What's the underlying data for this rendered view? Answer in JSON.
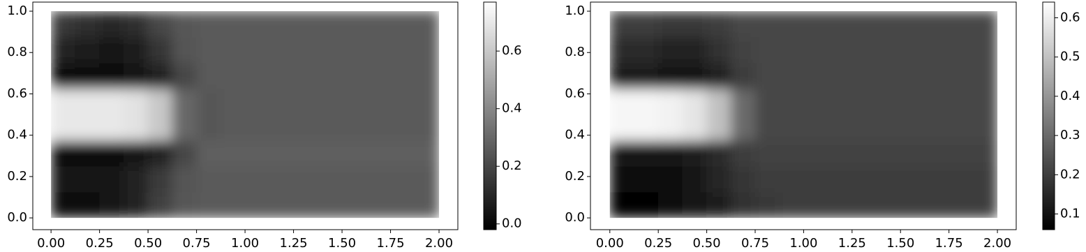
{
  "chart_data": [
    {
      "type": "heatmap",
      "x": [
        0.0625,
        0.1875,
        0.3125,
        0.4375,
        0.5625,
        0.6875,
        0.8125,
        0.9375,
        1.0625,
        1.1875,
        1.3125,
        1.4375,
        1.5625,
        1.6875,
        1.8125,
        1.9375
      ],
      "y": [
        0.0625,
        0.1875,
        0.3125,
        0.4375,
        0.5625,
        0.6875,
        0.8125,
        0.9375
      ],
      "z": [
        [
          0.03,
          0.03,
          0.04,
          0.08,
          0.18,
          0.25,
          0.26,
          0.26,
          0.26,
          0.26,
          0.26,
          0.26,
          0.26,
          0.26,
          0.26,
          0.26
        ],
        [
          0.04,
          0.04,
          0.05,
          0.08,
          0.16,
          0.24,
          0.26,
          0.26,
          0.26,
          0.26,
          0.26,
          0.26,
          0.26,
          0.26,
          0.26,
          0.26
        ],
        [
          0.03,
          0.03,
          0.03,
          0.04,
          0.08,
          0.2,
          0.27,
          0.27,
          0.27,
          0.27,
          0.27,
          0.27,
          0.27,
          0.27,
          0.27,
          0.27
        ],
        [
          0.7,
          0.7,
          0.7,
          0.68,
          0.6,
          0.3,
          0.25,
          0.26,
          0.26,
          0.26,
          0.26,
          0.26,
          0.26,
          0.26,
          0.26,
          0.26
        ],
        [
          0.7,
          0.7,
          0.7,
          0.68,
          0.6,
          0.3,
          0.25,
          0.26,
          0.26,
          0.26,
          0.26,
          0.26,
          0.26,
          0.26,
          0.26,
          0.26
        ],
        [
          0.03,
          0.03,
          0.03,
          0.04,
          0.08,
          0.2,
          0.26,
          0.26,
          0.26,
          0.26,
          0.26,
          0.26,
          0.26,
          0.26,
          0.26,
          0.26
        ],
        [
          0.08,
          0.06,
          0.05,
          0.06,
          0.14,
          0.24,
          0.26,
          0.26,
          0.26,
          0.26,
          0.26,
          0.26,
          0.26,
          0.26,
          0.26,
          0.26
        ],
        [
          0.15,
          0.12,
          0.1,
          0.12,
          0.2,
          0.25,
          0.26,
          0.26,
          0.26,
          0.26,
          0.26,
          0.26,
          0.26,
          0.26,
          0.26,
          0.26
        ]
      ],
      "xlim": [
        -0.094,
        2.097
      ],
      "ylim": [
        -0.057,
        1.044
      ],
      "xticks": [
        {
          "value": 0,
          "label": "0.00"
        },
        {
          "value": 0.25,
          "label": "0.25"
        },
        {
          "value": 0.5,
          "label": "0.50"
        },
        {
          "value": 0.75,
          "label": "0.75"
        },
        {
          "value": 1,
          "label": "1.00"
        },
        {
          "value": 1.25,
          "label": "1.25"
        },
        {
          "value": 1.5,
          "label": "1.50"
        },
        {
          "value": 1.75,
          "label": "1.75"
        },
        {
          "value": 2,
          "label": "2.00"
        }
      ],
      "yticks": [
        {
          "value": 0,
          "label": "0.0"
        },
        0.2,
        0.4,
        0.6,
        0.8,
        {
          "value": 1,
          "label": "1.0"
        }
      ],
      "colormap": "gray",
      "clim": [
        -0.02,
        0.77
      ],
      "cticks": [
        {
          "value": 0,
          "label": "0.0"
        },
        0.2,
        0.4,
        0.6
      ]
    },
    {
      "type": "heatmap",
      "x": [
        0.0625,
        0.1875,
        0.3125,
        0.4375,
        0.5625,
        0.6875,
        0.8125,
        0.9375,
        1.0625,
        1.1875,
        1.3125,
        1.4375,
        1.5625,
        1.6875,
        1.8125,
        1.9375
      ],
      "y": [
        0.0625,
        0.1875,
        0.3125,
        0.4375,
        0.5625,
        0.6875,
        0.8125,
        0.9375
      ],
      "z": [
        [
          0.07,
          0.07,
          0.08,
          0.1,
          0.13,
          0.17,
          0.19,
          0.2,
          0.2,
          0.2,
          0.2,
          0.2,
          0.2,
          0.2,
          0.2,
          0.2
        ],
        [
          0.08,
          0.08,
          0.09,
          0.11,
          0.15,
          0.18,
          0.2,
          0.2,
          0.2,
          0.2,
          0.2,
          0.2,
          0.2,
          0.2,
          0.2,
          0.2
        ],
        [
          0.1,
          0.1,
          0.1,
          0.12,
          0.16,
          0.2,
          0.21,
          0.21,
          0.21,
          0.21,
          0.21,
          0.21,
          0.21,
          0.21,
          0.21,
          0.21
        ],
        [
          0.62,
          0.62,
          0.61,
          0.58,
          0.5,
          0.3,
          0.22,
          0.22,
          0.22,
          0.22,
          0.22,
          0.22,
          0.22,
          0.22,
          0.22,
          0.22
        ],
        [
          0.62,
          0.62,
          0.61,
          0.58,
          0.5,
          0.3,
          0.22,
          0.22,
          0.22,
          0.22,
          0.22,
          0.22,
          0.22,
          0.22,
          0.22,
          0.22
        ],
        [
          0.12,
          0.12,
          0.11,
          0.11,
          0.14,
          0.2,
          0.22,
          0.22,
          0.22,
          0.22,
          0.22,
          0.22,
          0.22,
          0.22,
          0.22,
          0.22
        ],
        [
          0.16,
          0.16,
          0.14,
          0.14,
          0.17,
          0.21,
          0.22,
          0.22,
          0.22,
          0.22,
          0.22,
          0.22,
          0.22,
          0.22,
          0.22,
          0.22
        ],
        [
          0.2,
          0.2,
          0.19,
          0.19,
          0.2,
          0.22,
          0.22,
          0.22,
          0.22,
          0.22,
          0.22,
          0.22,
          0.22,
          0.22,
          0.22,
          0.22
        ]
      ],
      "xlim": [
        -0.1,
        2.097
      ],
      "ylim": [
        -0.057,
        1.044
      ],
      "xticks": [
        {
          "value": 0,
          "label": "0.00"
        },
        {
          "value": 0.25,
          "label": "0.25"
        },
        {
          "value": 0.5,
          "label": "0.50"
        },
        {
          "value": 0.75,
          "label": "0.75"
        },
        {
          "value": 1,
          "label": "1.00"
        },
        {
          "value": 1.25,
          "label": "1.25"
        },
        {
          "value": 1.5,
          "label": "1.50"
        },
        {
          "value": 1.75,
          "label": "1.75"
        },
        {
          "value": 2,
          "label": "2.00"
        }
      ],
      "yticks": [
        {
          "value": 0,
          "label": "0.0"
        },
        0.2,
        0.4,
        0.6,
        0.8,
        {
          "value": 1,
          "label": "1.0"
        }
      ],
      "colormap": "gray",
      "clim": [
        0.06,
        0.64
      ],
      "cticks": [
        0.1,
        0.2,
        0.3,
        0.4,
        0.5,
        0.6
      ]
    }
  ]
}
